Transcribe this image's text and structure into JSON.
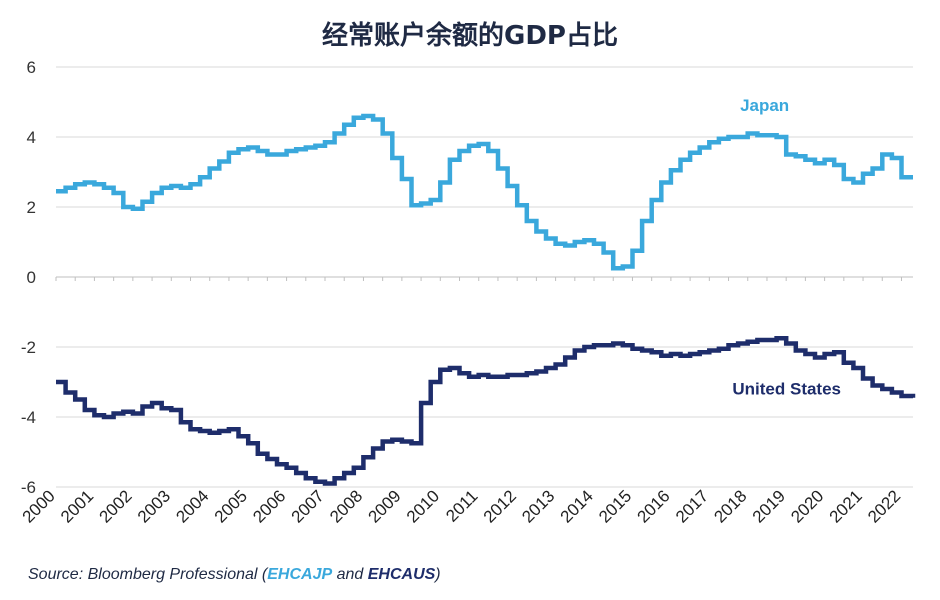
{
  "chart_data": {
    "type": "line",
    "title": "经常账户余额的GDP占比",
    "xlabel": "",
    "ylabel": "",
    "ylim": [
      -6,
      6
    ],
    "yticks": [
      "6",
      "4",
      "2",
      "0",
      "-2",
      "-4",
      "-6"
    ],
    "xlim": [
      2000,
      2022.3
    ],
    "xticks": [
      "2000",
      "2001",
      "2002",
      "2003",
      "2004",
      "2005",
      "2006",
      "2007",
      "2008",
      "2009",
      "2010",
      "2011",
      "2012",
      "2013",
      "2014",
      "2015",
      "2016",
      "2017",
      "2018",
      "2019",
      "2020",
      "2021",
      "2022"
    ],
    "grid": "horizontal",
    "series": [
      {
        "name": "Japan",
        "color": "#3aa8dc",
        "x": [
          2000.0,
          2000.25,
          2000.5,
          2000.75,
          2001.0,
          2001.25,
          2001.5,
          2001.75,
          2002.0,
          2002.25,
          2002.5,
          2002.75,
          2003.0,
          2003.25,
          2003.5,
          2003.75,
          2004.0,
          2004.25,
          2004.5,
          2004.75,
          2005.0,
          2005.25,
          2005.5,
          2005.75,
          2006.0,
          2006.25,
          2006.5,
          2006.75,
          2007.0,
          2007.25,
          2007.5,
          2007.75,
          2008.0,
          2008.25,
          2008.5,
          2008.75,
          2009.0,
          2009.25,
          2009.5,
          2009.75,
          2010.0,
          2010.25,
          2010.5,
          2010.75,
          2011.0,
          2011.25,
          2011.5,
          2011.75,
          2012.0,
          2012.25,
          2012.5,
          2012.75,
          2013.0,
          2013.25,
          2013.5,
          2013.75,
          2014.0,
          2014.25,
          2014.5,
          2014.75,
          2015.0,
          2015.25,
          2015.5,
          2015.75,
          2016.0,
          2016.25,
          2016.5,
          2016.75,
          2017.0,
          2017.25,
          2017.5,
          2017.75,
          2018.0,
          2018.25,
          2018.5,
          2018.75,
          2019.0,
          2019.25,
          2019.5,
          2019.75,
          2020.0,
          2020.25,
          2020.5,
          2020.75,
          2021.0,
          2021.25,
          2021.5,
          2021.75,
          2022.0,
          2022.3
        ],
        "values": [
          2.45,
          2.55,
          2.65,
          2.7,
          2.65,
          2.55,
          2.4,
          2.0,
          1.95,
          2.15,
          2.4,
          2.55,
          2.6,
          2.55,
          2.65,
          2.85,
          3.1,
          3.3,
          3.55,
          3.65,
          3.7,
          3.6,
          3.5,
          3.5,
          3.6,
          3.65,
          3.7,
          3.75,
          3.85,
          4.1,
          4.35,
          4.55,
          4.6,
          4.5,
          4.1,
          3.4,
          2.8,
          2.05,
          2.1,
          2.2,
          2.7,
          3.35,
          3.6,
          3.75,
          3.8,
          3.6,
          3.1,
          2.6,
          2.05,
          1.6,
          1.3,
          1.1,
          0.95,
          0.9,
          1.0,
          1.05,
          0.95,
          0.7,
          0.25,
          0.3,
          0.75,
          1.6,
          2.2,
          2.7,
          3.05,
          3.35,
          3.55,
          3.7,
          3.85,
          3.95,
          4.0,
          4.0,
          4.1,
          4.05,
          4.05,
          4.0,
          3.5,
          3.45,
          3.35,
          3.25,
          3.35,
          3.2,
          2.8,
          2.7,
          2.95,
          3.1,
          3.5,
          3.4,
          2.85,
          2.85
        ]
      },
      {
        "name": "United States",
        "color": "#1e2d6b",
        "x": [
          2000.0,
          2000.25,
          2000.5,
          2000.75,
          2001.0,
          2001.25,
          2001.5,
          2001.75,
          2002.0,
          2002.25,
          2002.5,
          2002.75,
          2003.0,
          2003.25,
          2003.5,
          2003.75,
          2004.0,
          2004.25,
          2004.5,
          2004.75,
          2005.0,
          2005.25,
          2005.5,
          2005.75,
          2006.0,
          2006.25,
          2006.5,
          2006.75,
          2007.0,
          2007.25,
          2007.5,
          2007.75,
          2008.0,
          2008.25,
          2008.5,
          2008.75,
          2009.0,
          2009.25,
          2009.5,
          2009.75,
          2010.0,
          2010.25,
          2010.5,
          2010.75,
          2011.0,
          2011.25,
          2011.5,
          2011.75,
          2012.0,
          2012.25,
          2012.5,
          2012.75,
          2013.0,
          2013.25,
          2013.5,
          2013.75,
          2014.0,
          2014.25,
          2014.5,
          2014.75,
          2015.0,
          2015.25,
          2015.5,
          2015.75,
          2016.0,
          2016.25,
          2016.5,
          2016.75,
          2017.0,
          2017.25,
          2017.5,
          2017.75,
          2018.0,
          2018.25,
          2018.5,
          2018.75,
          2019.0,
          2019.25,
          2019.5,
          2019.75,
          2020.0,
          2020.25,
          2020.5,
          2020.75,
          2021.0,
          2021.25,
          2021.5,
          2021.75,
          2022.0,
          2022.3
        ],
        "values": [
          -3.0,
          -3.3,
          -3.5,
          -3.8,
          -3.95,
          -4.0,
          -3.9,
          -3.85,
          -3.9,
          -3.7,
          -3.6,
          -3.75,
          -3.8,
          -4.15,
          -4.35,
          -4.4,
          -4.45,
          -4.4,
          -4.35,
          -4.55,
          -4.75,
          -5.05,
          -5.2,
          -5.35,
          -5.45,
          -5.6,
          -5.75,
          -5.85,
          -5.9,
          -5.75,
          -5.6,
          -5.45,
          -5.15,
          -4.9,
          -4.7,
          -4.65,
          -4.7,
          -4.75,
          -3.6,
          -3.0,
          -2.65,
          -2.6,
          -2.75,
          -2.85,
          -2.8,
          -2.85,
          -2.85,
          -2.8,
          -2.8,
          -2.75,
          -2.7,
          -2.6,
          -2.5,
          -2.3,
          -2.1,
          -2.0,
          -1.95,
          -1.95,
          -1.9,
          -1.95,
          -2.05,
          -2.1,
          -2.15,
          -2.25,
          -2.2,
          -2.25,
          -2.2,
          -2.15,
          -2.1,
          -2.05,
          -1.95,
          -1.9,
          -1.85,
          -1.8,
          -1.8,
          -1.75,
          -1.9,
          -2.1,
          -2.2,
          -2.3,
          -2.2,
          -2.15,
          -2.45,
          -2.6,
          -2.9,
          -3.1,
          -3.2,
          -3.3,
          -3.4,
          -3.45
        ]
      }
    ],
    "annotations": [
      {
        "text": "Japan",
        "series": 0
      },
      {
        "text": "United States",
        "series": 1
      }
    ]
  },
  "source": {
    "prefix": "Source: Bloomberg Professional (",
    "code_japan": "EHCAJP",
    "mid": " and ",
    "code_us": "EHCAUS",
    "suffix": ")",
    "color_japan": "#3aa8dc",
    "color_us": "#1e2d6b"
  }
}
